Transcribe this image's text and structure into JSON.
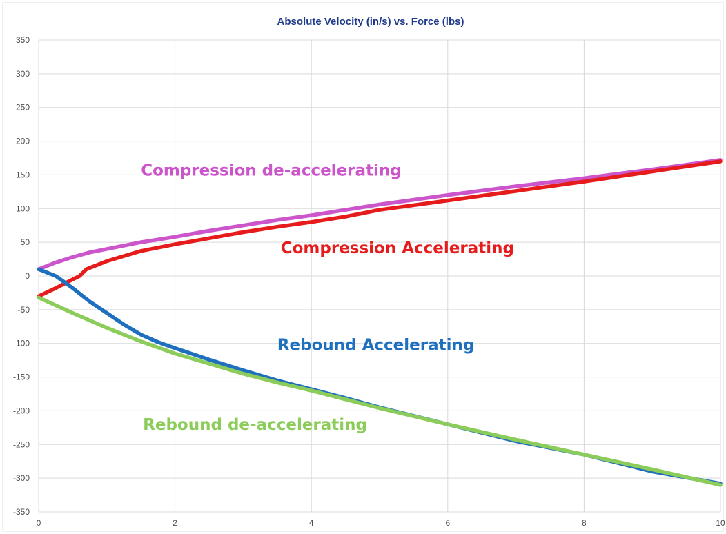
{
  "chart_data": {
    "type": "line",
    "title": "Absolute Velocity (in/s) vs. Force (lbs)",
    "title_color": "#1f3a8a",
    "xlabel": "",
    "ylabel": "",
    "xlim": [
      0,
      10
    ],
    "ylim": [
      -350,
      350
    ],
    "x_ticks": [
      0,
      2,
      4,
      6,
      8,
      10
    ],
    "y_ticks": [
      350,
      300,
      250,
      200,
      150,
      100,
      50,
      0,
      -50,
      -100,
      -150,
      -200,
      -250,
      -300,
      -350
    ],
    "grid": true,
    "legend": "none",
    "series": [
      {
        "color": "#cc55cc",
        "x": [
          0,
          0.25,
          0.5,
          0.75,
          1,
          1.5,
          2,
          2.5,
          3,
          3.5,
          4,
          4.5,
          5,
          6,
          7,
          8,
          9,
          10
        ],
        "y": [
          10,
          20,
          28,
          35,
          40,
          50,
          58,
          67,
          75,
          83,
          90,
          98,
          106,
          120,
          133,
          145,
          158,
          172
        ]
      },
      {
        "color": "#e61c1c",
        "x": [
          0,
          0.25,
          0.5,
          0.6,
          0.7,
          1,
          1.5,
          2,
          2.5,
          3,
          3.5,
          4,
          4.5,
          5,
          6,
          7,
          8,
          9,
          10
        ],
        "y": [
          -30,
          -18,
          -5,
          0,
          10,
          22,
          37,
          47,
          56,
          65,
          73,
          80,
          88,
          98,
          112,
          126,
          140,
          155,
          170
        ]
      },
      {
        "color": "#1f6fbf",
        "x": [
          0,
          0.25,
          0.5,
          0.75,
          1,
          1.25,
          1.5,
          1.75,
          2,
          2.5,
          3,
          3.5,
          4,
          4.5,
          5,
          6,
          7,
          8,
          9,
          10
        ],
        "y": [
          10,
          0,
          -18,
          -38,
          -55,
          -72,
          -87,
          -98,
          -107,
          -124,
          -140,
          -155,
          -168,
          -181,
          -195,
          -220,
          -245,
          -265,
          -290,
          -308
        ]
      },
      {
        "color": "#8ccc5a",
        "x": [
          0,
          0.5,
          1,
          1.5,
          2,
          2.5,
          3,
          3.5,
          4,
          4.5,
          5,
          6,
          7,
          8,
          9,
          10
        ],
        "y": [
          -32,
          -55,
          -77,
          -97,
          -115,
          -130,
          -145,
          -158,
          -170,
          -183,
          -196,
          -220,
          -243,
          -265,
          -287,
          -310
        ]
      }
    ],
    "annotations": [
      {
        "text": "Compression de-accelerating",
        "x": 1.5,
        "y": 149,
        "color": "#cc55cc"
      },
      {
        "text": "Compression Accelerating",
        "x": 3.55,
        "y": 34,
        "color": "#e61c1c"
      },
      {
        "text": "Rebound Accelerating",
        "x": 3.5,
        "y": -110,
        "color": "#1f6fbf"
      },
      {
        "text": "Rebound de-accelerating",
        "x": 1.53,
        "y": -228,
        "color": "#8ccc5a"
      }
    ]
  }
}
